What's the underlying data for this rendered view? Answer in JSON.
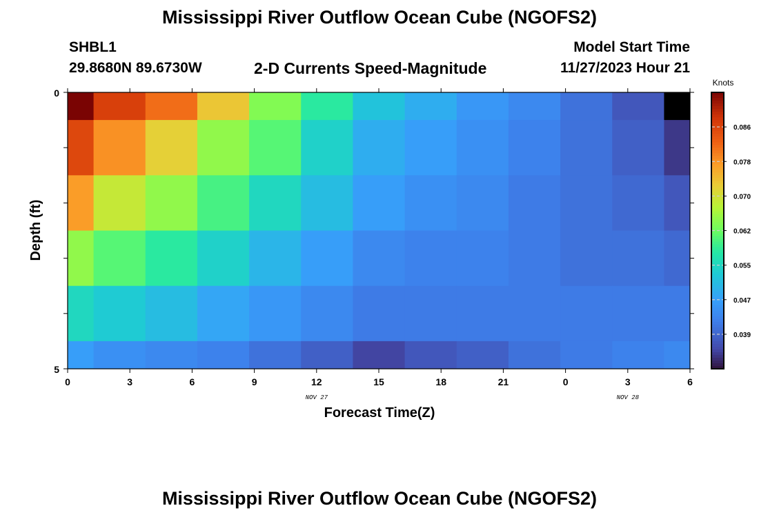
{
  "page": {
    "title": "Mississippi River Outflow Ocean Cube (NGOFS2)",
    "station_id": "SHBL1",
    "station_coords": "29.8680N  89.6730W",
    "subtitle": "2-D Currents Speed-Magnitude",
    "model_start_label": "Model Start Time",
    "model_start_value": "11/27/2023 Hour 21",
    "footer_title": "Mississippi River Outflow Ocean Cube (NGOFS2)"
  },
  "chart_data": {
    "type": "heatmap",
    "xlabel": "Forecast Time(Z)",
    "ylabel": "Depth (ft)",
    "x_ticks": [
      "0",
      "3",
      "6",
      "9",
      "12",
      "15",
      "18",
      "21",
      "0",
      "3",
      "6"
    ],
    "date_labels": [
      {
        "text": "NOV 27",
        "at_hours": 12
      },
      {
        "text": "NOV 28",
        "at_hours": 27
      }
    ],
    "y_ticks": [
      "0",
      "5"
    ],
    "xlim_hours": [
      0,
      30
    ],
    "ylim": [
      0,
      5
    ],
    "colorbar": {
      "unit": "Knots",
      "ticks": [
        "0.086",
        "0.078",
        "0.070",
        "0.062",
        "0.055",
        "0.047",
        "0.039"
      ],
      "range": [
        0.031,
        0.092
      ]
    },
    "rows_depth_ft": [
      0,
      1,
      2,
      3,
      4,
      5
    ],
    "cols_forecast_hour": [
      0,
      2.5,
      5,
      7.5,
      10,
      12.5,
      15,
      17.5,
      20,
      22.5,
      25,
      27.5,
      30
    ],
    "values": [
      [
        0.092,
        0.085,
        0.08,
        0.072,
        0.063,
        0.057,
        0.051,
        0.048,
        0.045,
        0.043,
        0.04,
        0.037,
        0.03
      ],
      [
        0.084,
        0.077,
        0.071,
        0.064,
        0.06,
        0.053,
        0.048,
        0.046,
        0.044,
        0.042,
        0.04,
        0.038,
        0.034
      ],
      [
        0.076,
        0.068,
        0.064,
        0.059,
        0.054,
        0.05,
        0.046,
        0.044,
        0.043,
        0.041,
        0.04,
        0.039,
        0.037
      ],
      [
        0.064,
        0.06,
        0.057,
        0.053,
        0.049,
        0.046,
        0.043,
        0.042,
        0.042,
        0.041,
        0.04,
        0.04,
        0.039
      ],
      [
        0.054,
        0.052,
        0.05,
        0.047,
        0.045,
        0.043,
        0.041,
        0.041,
        0.041,
        0.041,
        0.041,
        0.041,
        0.041
      ],
      [
        0.046,
        0.044,
        0.043,
        0.042,
        0.04,
        0.038,
        0.035,
        0.037,
        0.038,
        0.04,
        0.041,
        0.042,
        0.043
      ]
    ]
  }
}
